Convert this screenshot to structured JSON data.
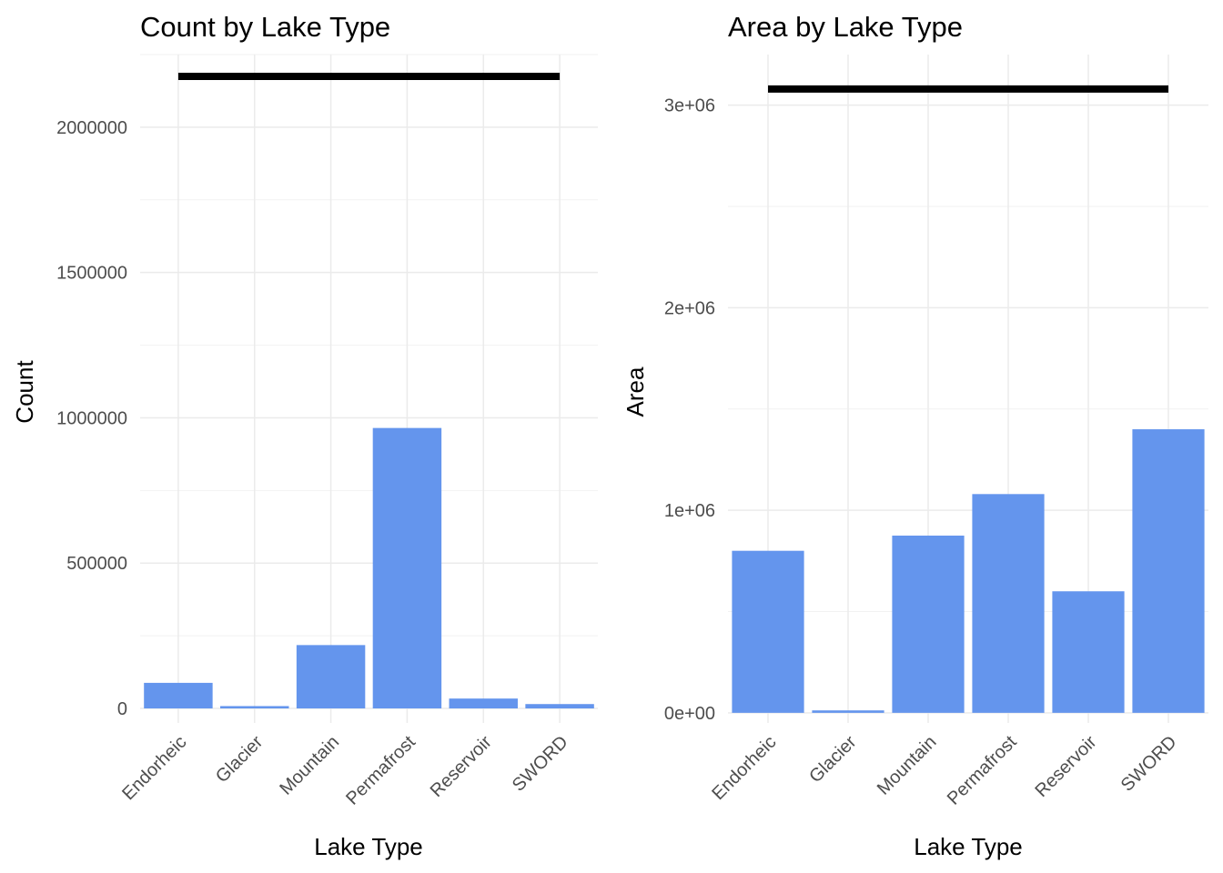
{
  "chart_data": [
    {
      "type": "bar",
      "title": "Count by Lake Type",
      "xlabel": "Lake Type",
      "ylabel": "Count",
      "categories": [
        "Endorheic",
        "Glacier",
        "Mountain",
        "Permafrost",
        "Reservoir",
        "SWORD"
      ],
      "values": [
        88000,
        8000,
        218000,
        965000,
        34000,
        15000
      ],
      "ylim": [
        -50000,
        2250000
      ],
      "yticks": [
        0,
        500000,
        1000000,
        1500000,
        2000000
      ],
      "ytick_labels": [
        "0",
        "500000",
        "1000000",
        "1500000",
        "2000000"
      ],
      "reference_line": {
        "x_from": "Endorheic",
        "x_to": "SWORD",
        "y": 2175000
      },
      "bar_color": "#6495ED",
      "grid": true
    },
    {
      "type": "bar",
      "title": "Area by Lake Type",
      "xlabel": "Lake Type",
      "ylabel": "Area",
      "categories": [
        "Endorheic",
        "Glacier",
        "Mountain",
        "Permafrost",
        "Reservoir",
        "SWORD"
      ],
      "values": [
        800000,
        12000,
        875000,
        1080000,
        600000,
        1400000
      ],
      "ylim": [
        -50000,
        3250000
      ],
      "yticks": [
        0,
        1000000,
        2000000,
        3000000
      ],
      "ytick_labels": [
        "0e+00",
        "1e+06",
        "2e+06",
        "3e+06"
      ],
      "reference_line": {
        "x_from": "Endorheic",
        "x_to": "SWORD",
        "y": 3080000
      },
      "bar_color": "#6495ED",
      "grid": true
    }
  ]
}
